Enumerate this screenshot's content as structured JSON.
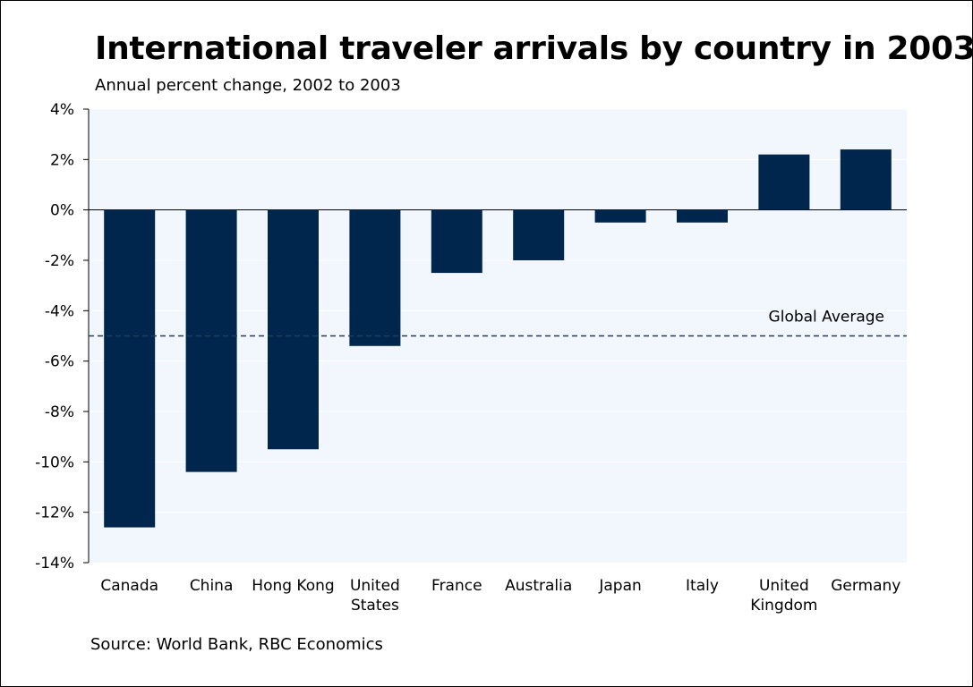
{
  "title": "International traveler arrivals by country in 2003",
  "subtitle": "Annual percent change, 2002 to 2003",
  "source": "Source: World Bank, RBC Economics",
  "colors": {
    "bar": "#00264d",
    "plot_bg": "#f2f7fd",
    "reference_line": "#1f3d5c"
  },
  "chart_data": {
    "type": "bar",
    "title": "International traveler arrivals by country in 2003",
    "subtitle": "Annual percent change, 2002 to 2003",
    "categories": [
      "Canada",
      "China",
      "Hong Kong",
      "United States",
      "France",
      "Australia",
      "Japan",
      "Italy",
      "United Kingdom",
      "Germany"
    ],
    "category_lines": [
      [
        "Canada"
      ],
      [
        "China"
      ],
      [
        "Hong Kong"
      ],
      [
        "United",
        "States"
      ],
      [
        "France"
      ],
      [
        "Australia"
      ],
      [
        "Japan"
      ],
      [
        "Italy"
      ],
      [
        "United",
        "Kingdom"
      ],
      [
        "Germany"
      ]
    ],
    "values": [
      -12.6,
      -10.4,
      -9.5,
      -5.4,
      -2.5,
      -2.0,
      -0.5,
      -0.5,
      2.2,
      2.4
    ],
    "ylim": [
      -14,
      4
    ],
    "yticks": [
      4,
      2,
      0,
      -2,
      -4,
      -6,
      -8,
      -10,
      -12,
      -14
    ],
    "ytick_labels": [
      "4%",
      "2%",
      "0%",
      "-2%",
      "-4%",
      "-6%",
      "-8%",
      "-10%",
      "-12%",
      "-14%"
    ],
    "reference_line": {
      "label": "Global Average",
      "value": -5.0,
      "style": "dashed"
    },
    "grid": true,
    "xlabel": "",
    "ylabel": ""
  }
}
